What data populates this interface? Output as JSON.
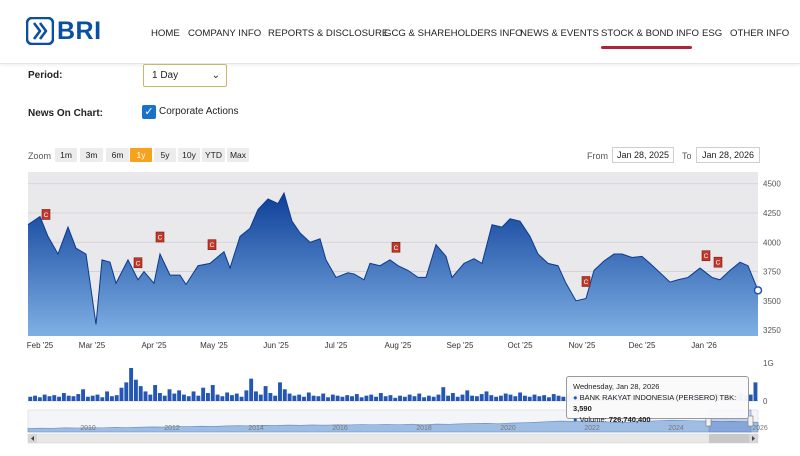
{
  "brand": {
    "name": "BRI"
  },
  "nav": {
    "items": [
      "HOME",
      "COMPANY INFO",
      "REPORTS & DISCLOSURE",
      "GCG & SHAREHOLDERS INFO",
      "NEWS & EVENTS",
      "STOCK & BOND INFO",
      "ESG",
      "OTHER INFO"
    ],
    "active": "STOCK & BOND INFO"
  },
  "controls": {
    "period_label": "Period:",
    "period_value": "1 Day",
    "news_label": "News On Chart:",
    "corporate_actions_label": "Corporate Actions",
    "corporate_actions_checked": true
  },
  "zoom": {
    "label": "Zoom",
    "buttons": [
      "1m",
      "3m",
      "6m",
      "1y",
      "5y",
      "10y",
      "YTD",
      "Max"
    ],
    "active": "1y",
    "from_label": "From",
    "from_value": "Jan 28, 2025",
    "to_label": "To",
    "to_value": "Jan 28, 2026"
  },
  "tooltip": {
    "date": "Wednesday, Jan 28, 2026",
    "series_name": "BANK RAKYAT INDONESIA (PERSERO) TBK:",
    "price": "3,590",
    "volume_label": "Volume:",
    "volume": "726,740,400"
  },
  "chart_data": {
    "type": "area",
    "x_tick_labels": [
      "Feb '25",
      "Mar '25",
      "Apr '25",
      "May '25",
      "Jun '25",
      "Jul '25",
      "Aug '25",
      "Sep '25",
      "Oct '25",
      "Nov '25",
      "Dec '25",
      "Jan '26"
    ],
    "y_tick_labels": [
      "3250",
      "3500",
      "3750",
      "4000",
      "4250",
      "4500"
    ],
    "ylim": [
      3200,
      4600
    ],
    "volume_tick_labels": [
      "1G",
      "0"
    ],
    "navigator_years": [
      "2010",
      "2012",
      "2014",
      "2016",
      "2018",
      "2020",
      "2022",
      "2024",
      "2026"
    ],
    "series": [
      {
        "name": "BANK RAKYAT INDONESIA (PERSERO) TBK",
        "points": [
          [
            "2025-01-28",
            4150
          ],
          [
            "2025-02-03",
            4220
          ],
          [
            "2025-02-07",
            4050
          ],
          [
            "2025-02-12",
            3900
          ],
          [
            "2025-02-17",
            4130
          ],
          [
            "2025-02-21",
            3950
          ],
          [
            "2025-02-26",
            3900
          ],
          [
            "2025-03-03",
            3300
          ],
          [
            "2025-03-06",
            3850
          ],
          [
            "2025-03-10",
            3830
          ],
          [
            "2025-03-13",
            3650
          ],
          [
            "2025-03-19",
            3850
          ],
          [
            "2025-03-24",
            3680
          ],
          [
            "2025-03-27",
            3750
          ],
          [
            "2025-04-01",
            3650
          ],
          [
            "2025-04-04",
            3900
          ],
          [
            "2025-04-09",
            3720
          ],
          [
            "2025-04-14",
            3720
          ],
          [
            "2025-04-17",
            3640
          ],
          [
            "2025-04-23",
            3800
          ],
          [
            "2025-04-29",
            3820
          ],
          [
            "2025-05-06",
            3920
          ],
          [
            "2025-05-09",
            3780
          ],
          [
            "2025-05-14",
            4050
          ],
          [
            "2025-05-19",
            4120
          ],
          [
            "2025-05-23",
            4280
          ],
          [
            "2025-05-28",
            4370
          ],
          [
            "2025-06-02",
            4330
          ],
          [
            "2025-06-05",
            4420
          ],
          [
            "2025-06-09",
            4180
          ],
          [
            "2025-06-13",
            4080
          ],
          [
            "2025-06-18",
            4000
          ],
          [
            "2025-06-23",
            4030
          ],
          [
            "2025-06-26",
            3850
          ],
          [
            "2025-07-01",
            3700
          ],
          [
            "2025-07-07",
            3740
          ],
          [
            "2025-07-10",
            3730
          ],
          [
            "2025-07-15",
            3680
          ],
          [
            "2025-07-18",
            3820
          ],
          [
            "2025-07-23",
            3800
          ],
          [
            "2025-07-28",
            3850
          ],
          [
            "2025-08-01",
            3800
          ],
          [
            "2025-08-06",
            3760
          ],
          [
            "2025-08-11",
            3700
          ],
          [
            "2025-08-15",
            3700
          ],
          [
            "2025-08-20",
            3980
          ],
          [
            "2025-08-25",
            3880
          ],
          [
            "2025-08-28",
            3700
          ],
          [
            "2025-09-03",
            3820
          ],
          [
            "2025-09-08",
            3860
          ],
          [
            "2025-09-12",
            3820
          ],
          [
            "2025-09-17",
            4150
          ],
          [
            "2025-09-22",
            4130
          ],
          [
            "2025-09-26",
            4200
          ],
          [
            "2025-10-01",
            4180
          ],
          [
            "2025-10-06",
            4050
          ],
          [
            "2025-10-10",
            3900
          ],
          [
            "2025-10-15",
            3820
          ],
          [
            "2025-10-20",
            3800
          ],
          [
            "2025-10-24",
            3650
          ],
          [
            "2025-10-29",
            3500
          ],
          [
            "2025-11-03",
            3520
          ],
          [
            "2025-11-07",
            3760
          ],
          [
            "2025-11-12",
            3840
          ],
          [
            "2025-11-17",
            3900
          ],
          [
            "2025-11-21",
            3900
          ],
          [
            "2025-11-26",
            3870
          ],
          [
            "2025-12-01",
            3880
          ],
          [
            "2025-12-05",
            3820
          ],
          [
            "2025-12-10",
            3740
          ],
          [
            "2025-12-15",
            3660
          ],
          [
            "2025-12-19",
            3680
          ],
          [
            "2025-12-24",
            3700
          ],
          [
            "2025-12-30",
            3780
          ],
          [
            "2026-01-05",
            3700
          ],
          [
            "2026-01-09",
            3680
          ],
          [
            "2026-01-14",
            3760
          ],
          [
            "2026-01-19",
            3830
          ],
          [
            "2026-01-23",
            3800
          ],
          [
            "2026-01-28",
            3590
          ]
        ]
      }
    ],
    "corporate_actions": [
      "2025-02-06",
      "2025-03-24",
      "2025-04-04",
      "2025-04-30",
      "2025-07-31",
      "2025-11-03",
      "2026-01-02",
      "2026-01-08"
    ],
    "volume": [
      0.08,
      0.1,
      0.07,
      0.12,
      0.09,
      0.11,
      0.08,
      0.15,
      0.1,
      0.09,
      0.13,
      0.22,
      0.08,
      0.1,
      0.12,
      0.07,
      0.18,
      0.09,
      0.11,
      0.25,
      0.35,
      0.62,
      0.4,
      0.28,
      0.18,
      0.12,
      0.3,
      0.15,
      0.1,
      0.22,
      0.14,
      0.2,
      0.12,
      0.09,
      0.18,
      0.1,
      0.25,
      0.15,
      0.3,
      0.12,
      0.09,
      0.16,
      0.11,
      0.14,
      0.08,
      0.2,
      0.42,
      0.18,
      0.12,
      0.28,
      0.15,
      0.1,
      0.35,
      0.22,
      0.14,
      0.1,
      0.12,
      0.08,
      0.16,
      0.1,
      0.09,
      0.14,
      0.07,
      0.12,
      0.1,
      0.08,
      0.11,
      0.09,
      0.13,
      0.07,
      0.1,
      0.12,
      0.08,
      0.15,
      0.09,
      0.11,
      0.06,
      0.1,
      0.08,
      0.12,
      0.09,
      0.14,
      0.07,
      0.1,
      0.08,
      0.12,
      0.26,
      0.1,
      0.15,
      0.08,
      0.12,
      0.2,
      0.1,
      0.09,
      0.13,
      0.18,
      0.11,
      0.08,
      0.1,
      0.14,
      0.12,
      0.09,
      0.16,
      0.1,
      0.08,
      0.12,
      0.09,
      0.11,
      0.07,
      0.13,
      0.1,
      0.08,
      0.15,
      0.09,
      0.12,
      0.1,
      0.14,
      0.08,
      0.11,
      0.09,
      0.1,
      0.12,
      0.08,
      0.14,
      0.1,
      0.09,
      0.11,
      0.13,
      0.08,
      0.1,
      0.09,
      0.12,
      0.07,
      0.1,
      0.11,
      0.08,
      0.12,
      0.09,
      0.1,
      0.14,
      0.09,
      0.11,
      0.08,
      0.13,
      0.1,
      0.12,
      0.09,
      0.11,
      0.15,
      0.1,
      0.12,
      0.35
    ],
    "navigator": [
      0.3,
      0.32,
      0.31,
      0.35,
      0.33,
      0.36,
      0.34,
      0.38,
      0.36,
      0.4,
      0.42,
      0.41,
      0.45,
      0.44,
      0.48,
      0.46,
      0.5,
      0.52,
      0.5,
      0.55,
      0.53,
      0.57,
      0.55,
      0.58,
      0.56,
      0.6,
      0.58,
      0.62,
      0.6,
      0.63,
      0.61,
      0.65,
      0.6,
      0.66,
      0.64,
      0.68,
      0.7,
      0.72,
      0.68,
      0.74,
      0.76,
      0.8,
      0.85,
      0.9,
      0.88,
      0.92,
      0.86,
      0.82,
      0.78,
      0.84,
      0.88,
      0.94,
      0.98,
      0.96,
      0.92,
      0.9,
      0.86,
      0.88,
      0.84,
      0.8
    ]
  }
}
